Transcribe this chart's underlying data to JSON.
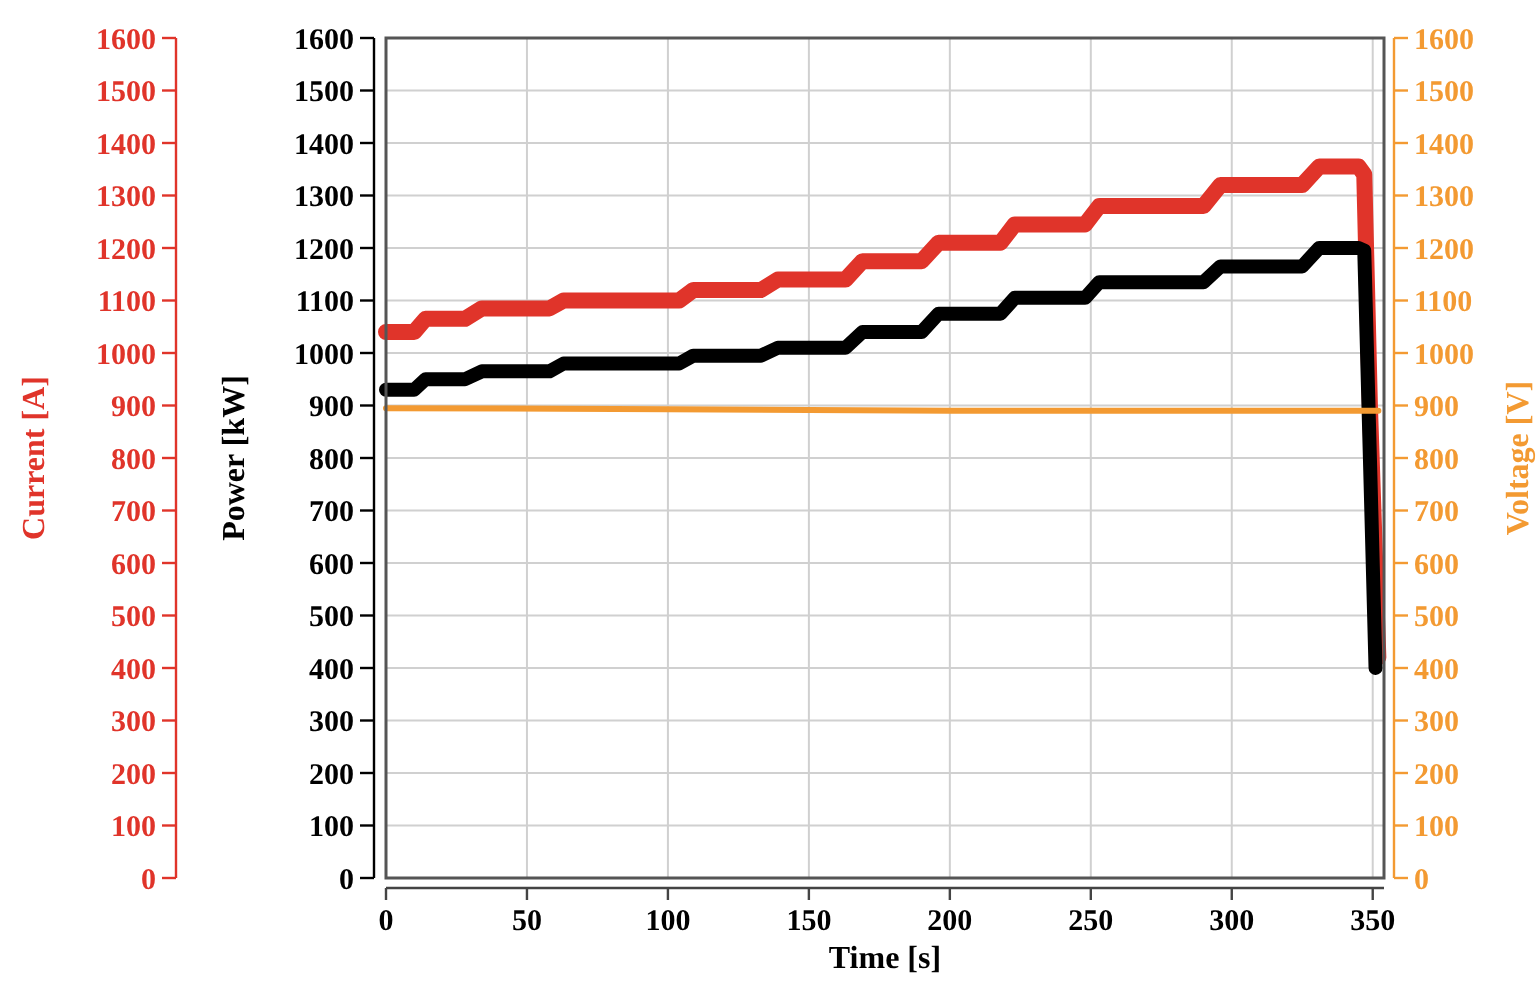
{
  "chart_data": {
    "type": "line",
    "xlabel": "Time [s]",
    "ylabel": "Power [kW]",
    "y2label": "Voltage [V]",
    "y3label": "Current [A]",
    "xlim": [
      0,
      354
    ],
    "xticks": [
      0,
      50,
      100,
      150,
      200,
      250,
      300,
      350
    ],
    "ylim": [
      0,
      1600
    ],
    "yticks": [
      0,
      100,
      200,
      300,
      400,
      500,
      600,
      700,
      800,
      900,
      1000,
      1100,
      1200,
      1300,
      1400,
      1500,
      1600
    ],
    "y2lim": [
      0,
      1600
    ],
    "y2ticks": [
      0,
      100,
      200,
      300,
      400,
      500,
      600,
      700,
      800,
      900,
      1000,
      1100,
      1200,
      1300,
      1400,
      1500,
      1600
    ],
    "y3lim": [
      0,
      1600
    ],
    "y3ticks": [
      0,
      100,
      200,
      300,
      400,
      500,
      600,
      700,
      800,
      900,
      1000,
      1100,
      1200,
      1300,
      1400,
      1500,
      1600
    ],
    "grid": true,
    "series": [
      {
        "color": "#e0342a",
        "axis": "y3",
        "x": [
          0,
          10,
          14,
          28,
          34,
          58,
          63,
          104,
          109,
          133,
          139,
          163,
          169,
          190,
          196,
          218,
          223,
          248,
          253,
          290,
          296,
          325,
          331,
          345,
          347,
          349,
          352
        ],
        "values": [
          1040,
          1040,
          1065,
          1065,
          1085,
          1085,
          1100,
          1100,
          1120,
          1120,
          1140,
          1140,
          1175,
          1175,
          1210,
          1210,
          1245,
          1245,
          1280,
          1280,
          1320,
          1320,
          1355,
          1355,
          1340,
          900,
          420
        ]
      },
      {
        "color": "#000000",
        "axis": "y",
        "x": [
          0,
          10,
          14,
          28,
          34,
          58,
          63,
          104,
          109,
          133,
          139,
          163,
          169,
          190,
          196,
          218,
          223,
          248,
          253,
          290,
          296,
          325,
          331,
          345,
          347,
          349,
          351
        ],
        "values": [
          930,
          930,
          950,
          950,
          965,
          965,
          980,
          980,
          995,
          995,
          1010,
          1010,
          1040,
          1040,
          1075,
          1075,
          1105,
          1105,
          1135,
          1135,
          1165,
          1165,
          1200,
          1200,
          1195,
          800,
          400
        ]
      },
      {
        "color": "#f39a32",
        "axis": "y2",
        "x": [
          0,
          100,
          200,
          300,
          352
        ],
        "values": [
          895,
          893,
          890,
          890,
          890
        ]
      }
    ]
  }
}
